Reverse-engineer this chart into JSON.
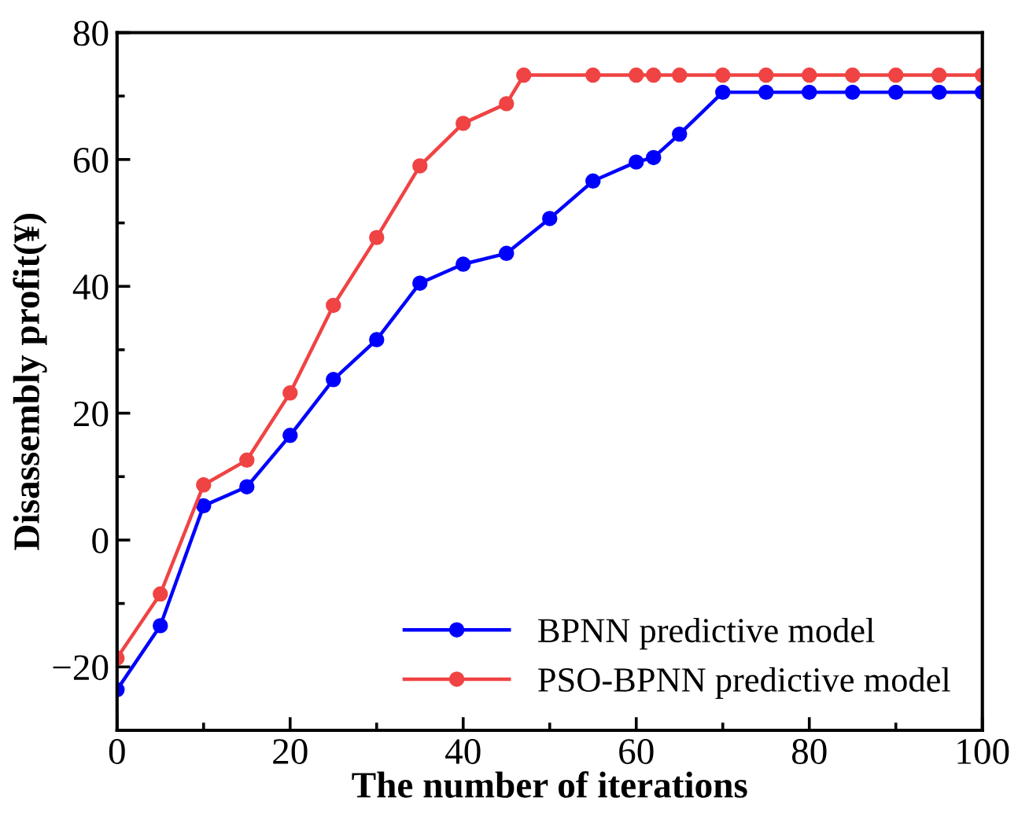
{
  "chart_data": {
    "type": "line",
    "xlabel": "The number of iterations",
    "ylabel": "Disassembly profit(¥)",
    "xlim": [
      0,
      100
    ],
    "ylim": [
      -30,
      80
    ],
    "xticks": [
      0,
      {
        "value": 10,
        "label": null
      },
      20,
      {
        "value": 30,
        "label": null
      },
      40,
      {
        "value": 50,
        "label": null
      },
      60,
      {
        "value": 70,
        "label": null
      },
      80,
      {
        "value": 90,
        "label": null
      },
      100
    ],
    "yticks": [
      {
        "value": -20,
        "label": "−20"
      },
      {
        "value": -10,
        "label": null
      },
      0,
      {
        "value": 10,
        "label": null
      },
      20,
      {
        "value": 30,
        "label": null
      },
      40,
      {
        "value": 50,
        "label": null
      },
      60,
      {
        "value": 70,
        "label": null
      },
      80
    ],
    "marker": "circle",
    "line_style": "solid",
    "grid": false,
    "legend": "bottom right",
    "series": [
      {
        "name": "BPNN predictive model",
        "color": "#0000ff",
        "x": [
          0,
          5,
          10,
          15,
          20,
          25,
          30,
          35,
          40,
          45,
          50,
          55,
          60,
          62,
          65,
          70,
          75,
          80,
          85,
          90,
          95,
          100
        ],
        "values": [
          -23.6,
          -13.5,
          5.4,
          8.4,
          16.5,
          25.3,
          31.6,
          40.5,
          43.5,
          45.2,
          50.7,
          56.6,
          59.6,
          60.3,
          64,
          70.6,
          70.6,
          70.6,
          70.6,
          70.6,
          70.6,
          70.6
        ]
      },
      {
        "name": "PSO-BPNN predictive model",
        "color": "#f04343",
        "x": [
          0,
          5,
          10,
          15,
          20,
          25,
          30,
          35,
          40,
          45,
          47,
          55,
          60,
          62,
          65,
          70,
          75,
          80,
          85,
          90,
          95,
          100
        ],
        "values": [
          -18.6,
          -8.5,
          8.7,
          12.6,
          23.2,
          37.0,
          47.7,
          59.0,
          65.7,
          68.8,
          73.3,
          73.3,
          73.3,
          73.3,
          73.3,
          73.3,
          73.3,
          73.3,
          73.3,
          73.3,
          73.3,
          73.3
        ]
      }
    ]
  }
}
